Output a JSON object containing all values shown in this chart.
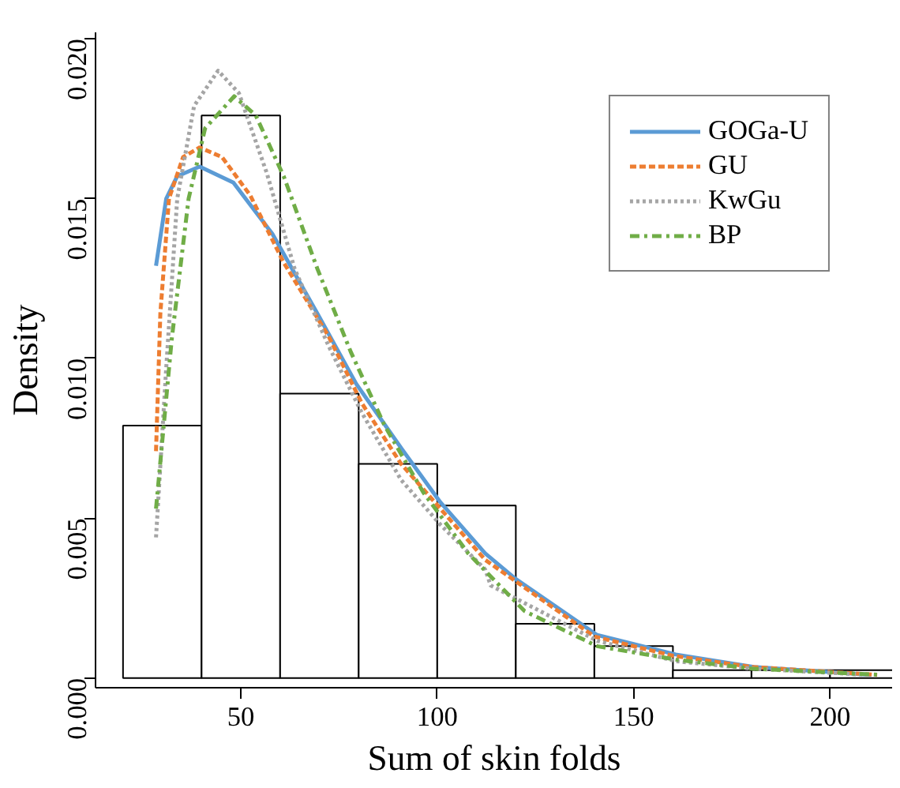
{
  "chart_data": {
    "type": "histogram",
    "xlabel": "Sum of skin folds",
    "ylabel": "Density",
    "bins": [
      20,
      40,
      60,
      80,
      100,
      120,
      140,
      160,
      180,
      200,
      220
    ],
    "values": [
      0.0079,
      0.0176,
      0.0089,
      0.0067,
      0.0054,
      0.0017,
      0.001,
      0.00025,
      0.00025,
      0.00025
    ],
    "color": "#ffffff",
    "xlim": [
      13,
      216
    ],
    "ylim": [
      -0.0003,
      0.0202
    ],
    "xticks": [
      50,
      100,
      150,
      200
    ],
    "yticks": [
      {
        "value": 0,
        "label": "0.000"
      },
      {
        "value": 0.005,
        "label": "0.005"
      },
      {
        "value": 0.01,
        "label": "0.010"
      },
      {
        "value": 0.015,
        "label": "0.015"
      },
      {
        "value": 0.02,
        "label": "0.020"
      }
    ],
    "grid": false,
    "legend": "top right",
    "marker": "none",
    "series": [
      {
        "name": "GOGa-U",
        "type": "line",
        "color": "#5b9bd5",
        "line_style": "solid",
        "x": [
          28.4,
          31.0,
          33.8,
          39.5,
          48.1,
          58.0,
          69.5,
          79.4,
          90.8,
          100.8,
          112.2,
          120.0,
          140.7,
          160.7,
          180.6,
          210.5
        ],
        "values": [
          0.0129,
          0.015,
          0.0157,
          0.016,
          0.0155,
          0.0139,
          0.0114,
          0.0092,
          0.0072,
          0.0055,
          0.0039,
          0.0031,
          0.00135,
          0.00074,
          0.00035,
          0.0001
        ]
      },
      {
        "name": "GU",
        "type": "line",
        "color": "#ed7d31",
        "line_style": "dashed",
        "x": [
          28.4,
          29.5,
          31.7,
          35.3,
          39.5,
          45.2,
          52.4,
          60.9,
          72.3,
          80.8,
          90.8,
          100.8,
          112.2,
          140,
          160,
          180,
          212
        ],
        "values": [
          0.0071,
          0.0114,
          0.015,
          0.0163,
          0.0166,
          0.0163,
          0.0151,
          0.013,
          0.0107,
          0.0086,
          0.0067,
          0.0053,
          0.0037,
          0.0013,
          0.0007,
          0.00035,
          0.0001
        ]
      },
      {
        "name": "KwGu",
        "type": "line",
        "color": "#a5a5a5",
        "line_style": "dotted",
        "x": [
          28.4,
          31.0,
          33.8,
          38.1,
          44.2,
          49.5,
          56.6,
          63.7,
          72.3,
          80.8,
          90.8,
          100.8,
          112.2,
          113.6,
          140.7,
          160.7,
          180,
          210
        ],
        "values": [
          0.0044,
          0.0097,
          0.015,
          0.0179,
          0.019,
          0.0183,
          0.0158,
          0.0128,
          0.0104,
          0.0083,
          0.0062,
          0.0048,
          0.0034,
          0.0029,
          0.00117,
          0.00053,
          0.0003,
          0.0001
        ]
      },
      {
        "name": "BP",
        "type": "line",
        "color": "#70ad47",
        "line_style": "dashdot",
        "x": [
          28.4,
          32.4,
          36.7,
          40.9,
          48.3,
          53.8,
          60.9,
          69.5,
          78.0,
          86.6,
          96.5,
          107.9,
          122.2,
          140.7,
          160.7,
          180,
          213
        ],
        "values": [
          0.0053,
          0.0106,
          0.015,
          0.0172,
          0.0182,
          0.0176,
          0.0157,
          0.0128,
          0.0102,
          0.0079,
          0.0058,
          0.0039,
          0.0021,
          0.001,
          0.00058,
          0.0003,
          0.0001
        ]
      }
    ]
  }
}
